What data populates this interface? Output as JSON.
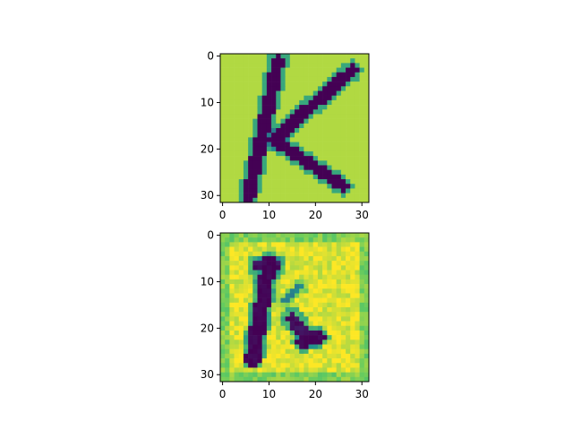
{
  "figure": {
    "background": "#ffffff"
  },
  "colormap": {
    "name": "viridis",
    "stops": [
      "#440154",
      "#3b528b",
      "#21918c",
      "#5ec962",
      "#fde725"
    ]
  },
  "chart_data": [
    {
      "type": "heatmap",
      "title": "",
      "grid_size": [
        32,
        32
      ],
      "xlim": [
        -0.5,
        31.5
      ],
      "ylim": [
        31.5,
        -0.5
      ],
      "xticks": [
        0,
        10,
        20,
        30
      ],
      "yticks": [
        0,
        10,
        20,
        30
      ],
      "xtick_labels": [
        "0",
        "10",
        "20",
        "30"
      ],
      "ytick_labels": [
        "0",
        "10",
        "20",
        "30"
      ],
      "background_value": 0.88,
      "strokes": [
        {
          "points": [
            [
              5.5,
              30.5
            ],
            [
              12.0,
              1.0
            ]
          ],
          "width": 1.4,
          "value": 0.0
        },
        {
          "points": [
            [
              11.0,
              18.0
            ],
            [
              28.0,
              3.0
            ]
          ],
          "width": 1.3,
          "value": 0.0
        },
        {
          "points": [
            [
              11.0,
              18.0
            ],
            [
              26.0,
              28.0
            ]
          ],
          "width": 1.3,
          "value": 0.0
        }
      ],
      "noise": 0.0
    },
    {
      "type": "heatmap",
      "title": "",
      "grid_size": [
        32,
        32
      ],
      "xlim": [
        -0.5,
        31.5
      ],
      "ylim": [
        31.5,
        -0.5
      ],
      "xticks": [
        0,
        10,
        20,
        30
      ],
      "yticks": [
        0,
        10,
        20,
        30
      ],
      "xtick_labels": [
        "0",
        "10",
        "20",
        "30"
      ],
      "ytick_labels": [
        "0",
        "10",
        "20",
        "30"
      ],
      "background_value": 0.95,
      "border_value": 0.8,
      "strokes": [
        {
          "points": [
            [
              10.0,
              6.0
            ],
            [
              6.5,
              26.5
            ]
          ],
          "width": 1.6,
          "value": 0.0
        },
        {
          "points": [
            [
              7.0,
              6.5
            ],
            [
              12.0,
              6.5
            ]
          ],
          "width": 1.0,
          "value": 0.05
        },
        {
          "points": [
            [
              13.0,
              14.0
            ],
            [
              17.0,
              11.0
            ]
          ],
          "width": 0.7,
          "value": 0.45
        },
        {
          "points": [
            [
              15.0,
              18.0
            ],
            [
              19.0,
              22.5
            ]
          ],
          "width": 1.4,
          "value": 0.05
        },
        {
          "points": [
            [
              17.0,
              23.0
            ],
            [
              21.0,
              22.0
            ]
          ],
          "width": 1.3,
          "value": 0.0
        }
      ],
      "noise": 0.08
    }
  ]
}
